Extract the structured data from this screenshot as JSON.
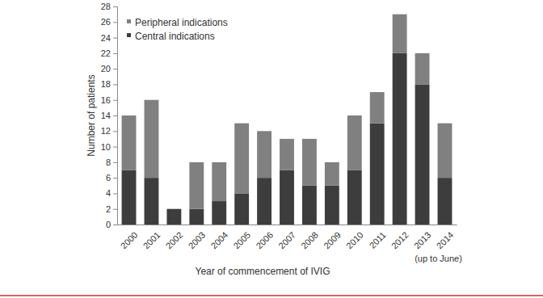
{
  "chart_data": {
    "type": "bar",
    "stacked": true,
    "x_label": "Year of commencement of IVIG",
    "y_label": "Number of patients",
    "categories": [
      "2000",
      "2001",
      "2002",
      "2003",
      "2004",
      "2005",
      "2006",
      "2007",
      "2008",
      "2009",
      "2010",
      "2011",
      "2012",
      "2013",
      "2014"
    ],
    "series": [
      {
        "name": "Central indications",
        "color": "#3d3d3d",
        "values": [
          7,
          6,
          2,
          2,
          3,
          4,
          6,
          7,
          5,
          5,
          7,
          13,
          22,
          18,
          6
        ]
      },
      {
        "name": "Peripheral indications",
        "color": "#808080",
        "values": [
          7,
          10,
          0,
          6,
          5,
          9,
          6,
          4,
          6,
          3,
          7,
          4,
          5,
          4,
          7
        ]
      }
    ],
    "ylim": [
      0,
      28
    ],
    "yticks": [
      0,
      2,
      4,
      6,
      8,
      10,
      12,
      14,
      16,
      18,
      20,
      22,
      24,
      26,
      28
    ],
    "legend": "upper left",
    "grid": false,
    "annotations": [
      {
        "text": "(up to June)",
        "x": "2014"
      }
    ]
  }
}
